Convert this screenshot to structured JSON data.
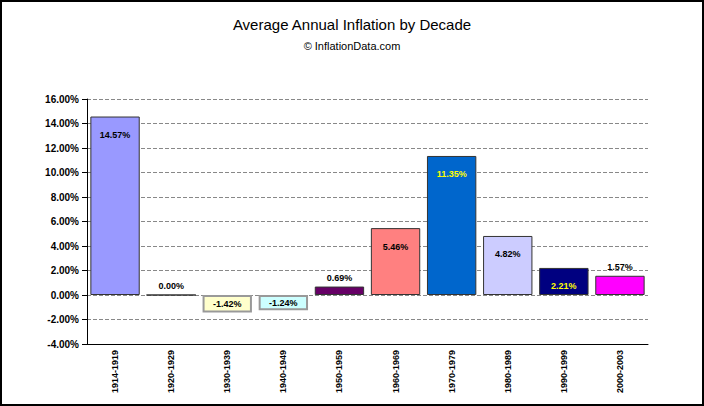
{
  "chart_data": {
    "type": "bar",
    "title": "Average Annual Inflation by Decade",
    "subtitle": "© InflationData.com",
    "categories": [
      "1914-1919",
      "1920-1929",
      "1930-1939",
      "1940-1949",
      "1950-1959",
      "1960-1969",
      "1970-1979",
      "1980-1989",
      "1990-1999",
      "2000-2003"
    ],
    "values": [
      14.57,
      0.0,
      -1.42,
      -1.24,
      0.69,
      5.46,
      11.35,
      4.82,
      2.21,
      1.57
    ],
    "value_labels": [
      "14.57%",
      "0.00%",
      "-1.42%",
      "-1.24%",
      "0.69%",
      "5.46%",
      "11.35%",
      "4.82%",
      "2.21%",
      "1.57%"
    ],
    "colors": [
      "#9999ff",
      "#ffffcc",
      "#ffffcc",
      "#ccffff",
      "#660066",
      "#ff8080",
      "#0066cc",
      "#ccccff",
      "#000080",
      "#ff00ff"
    ],
    "ylim": [
      -4,
      16
    ],
    "yticks": [
      {
        "value": -4,
        "label": "-4.00%"
      },
      {
        "value": -2,
        "label": "-2.00%"
      },
      {
        "value": 0,
        "label": "0.00%"
      },
      {
        "value": 2,
        "label": "2.00%"
      },
      {
        "value": 4,
        "label": "4.00%"
      },
      {
        "value": 6,
        "label": "6.00%"
      },
      {
        "value": 8,
        "label": "8.00%"
      },
      {
        "value": 10,
        "label": "10.00%"
      },
      {
        "value": 12,
        "label": "12.00%"
      },
      {
        "value": 14,
        "label": "14.00%"
      },
      {
        "value": 16,
        "label": "16.00%"
      }
    ],
    "grid": true,
    "data_labels": true
  }
}
